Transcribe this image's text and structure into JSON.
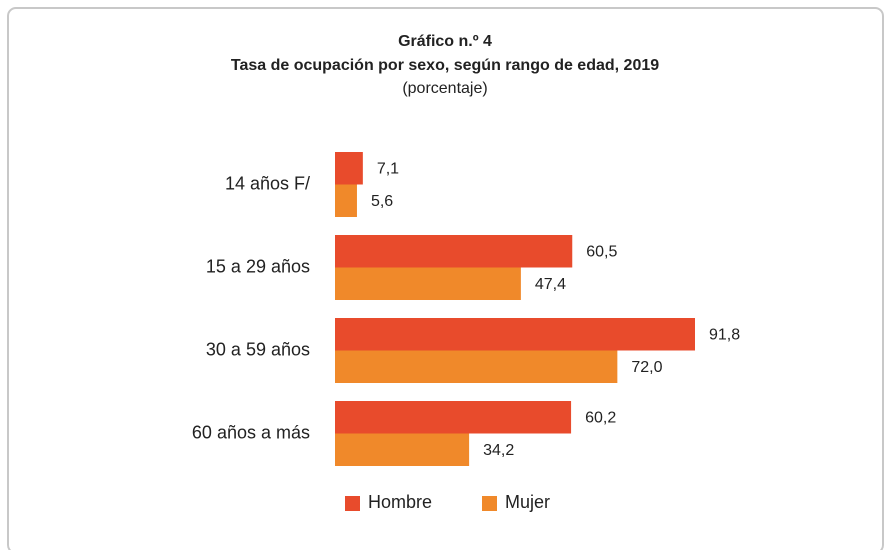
{
  "chart_data": {
    "type": "bar",
    "orientation": "horizontal",
    "title": "Gráfico n.º 4",
    "subtitle": "Tasa de ocupación por sexo, según rango de edad, 2019",
    "unit_note": "(porcentaje)",
    "categories": [
      "14 años F/",
      "15 a 29 años",
      "30 a 59 años",
      "60 años a más"
    ],
    "series": [
      {
        "name": "Hombre",
        "color": "#e84b2c",
        "values": [
          7.1,
          60.5,
          91.8,
          60.2
        ],
        "value_labels": [
          "7,1",
          "60,5",
          "91,8",
          "60,2"
        ]
      },
      {
        "name": "Mujer",
        "color": "#f0892a",
        "values": [
          5.6,
          47.4,
          72.0,
          34.2
        ],
        "value_labels": [
          "5,6",
          "47,4",
          "72,0",
          "34,2"
        ]
      }
    ],
    "legend": "bottom"
  }
}
